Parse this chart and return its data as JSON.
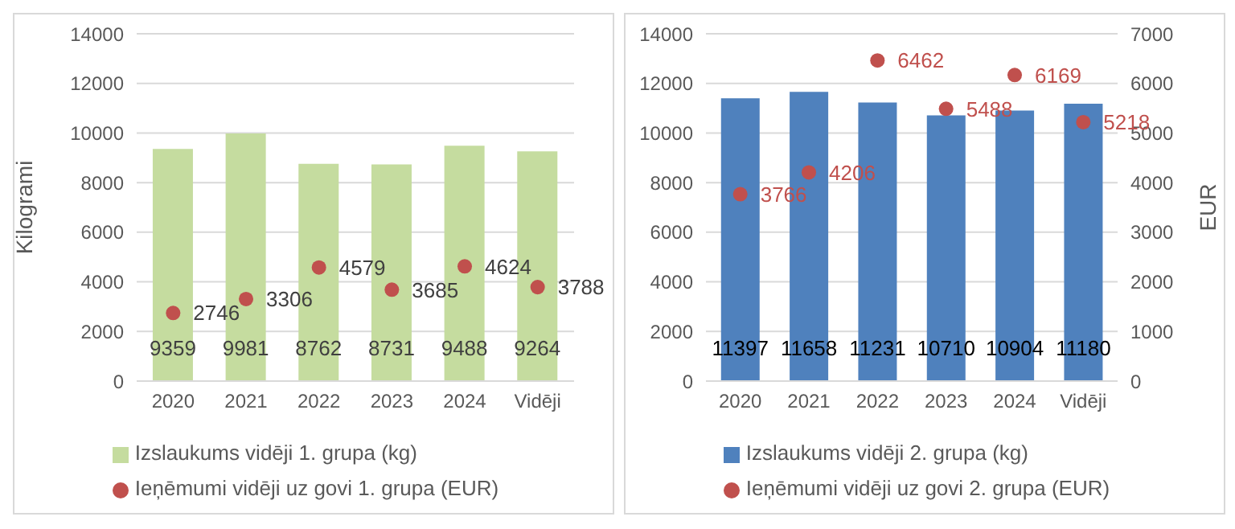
{
  "chart_data": [
    {
      "type": "bar",
      "ylabel": "Kilogrami",
      "categories": [
        "2020",
        "2021",
        "2022",
        "2023",
        "2024",
        "Vidēji"
      ],
      "ylim": [
        0,
        14000
      ],
      "yticks": [
        0,
        2000,
        4000,
        6000,
        8000,
        10000,
        12000,
        14000
      ],
      "grid": "y",
      "legend": "bottom",
      "data_labels": true,
      "series": [
        {
          "name": "Izslaukums vidēji 1. grupa (kg)",
          "type": "bar",
          "color": "#c5dc9f",
          "values": [
            9359,
            9981,
            8762,
            8731,
            9488,
            9264
          ]
        },
        {
          "name": "Ieņēmumi vidēji uz govi 1. grupa (EUR)",
          "type": "scatter",
          "color": "#c0504d",
          "values": [
            2746,
            3306,
            4579,
            3685,
            4624,
            3788
          ]
        }
      ]
    },
    {
      "type": "bar",
      "y2label": "EUR",
      "categories": [
        "2020",
        "2021",
        "2022",
        "2023",
        "2024",
        "Vidēji"
      ],
      "ylim": [
        0,
        14000
      ],
      "yticks": [
        0,
        2000,
        4000,
        6000,
        8000,
        10000,
        12000,
        14000
      ],
      "y2lim": [
        0,
        7000
      ],
      "y2ticks": [
        0,
        1000,
        2000,
        3000,
        4000,
        5000,
        6000,
        7000
      ],
      "grid": "y",
      "legend": "bottom",
      "data_labels": true,
      "series": [
        {
          "name": "Izslaukums vidēji 2. grupa (kg)",
          "type": "bar",
          "color": "#4f81bd",
          "values": [
            11397,
            11658,
            11231,
            10710,
            10904,
            11180
          ]
        },
        {
          "name": "Ieņēmumi vidēji uz govi 2. grupa (EUR)",
          "type": "scatter",
          "axis": "y2",
          "color": "#c0504d",
          "values": [
            3766,
            4206,
            6462,
            5488,
            6169,
            5218
          ]
        }
      ]
    }
  ]
}
